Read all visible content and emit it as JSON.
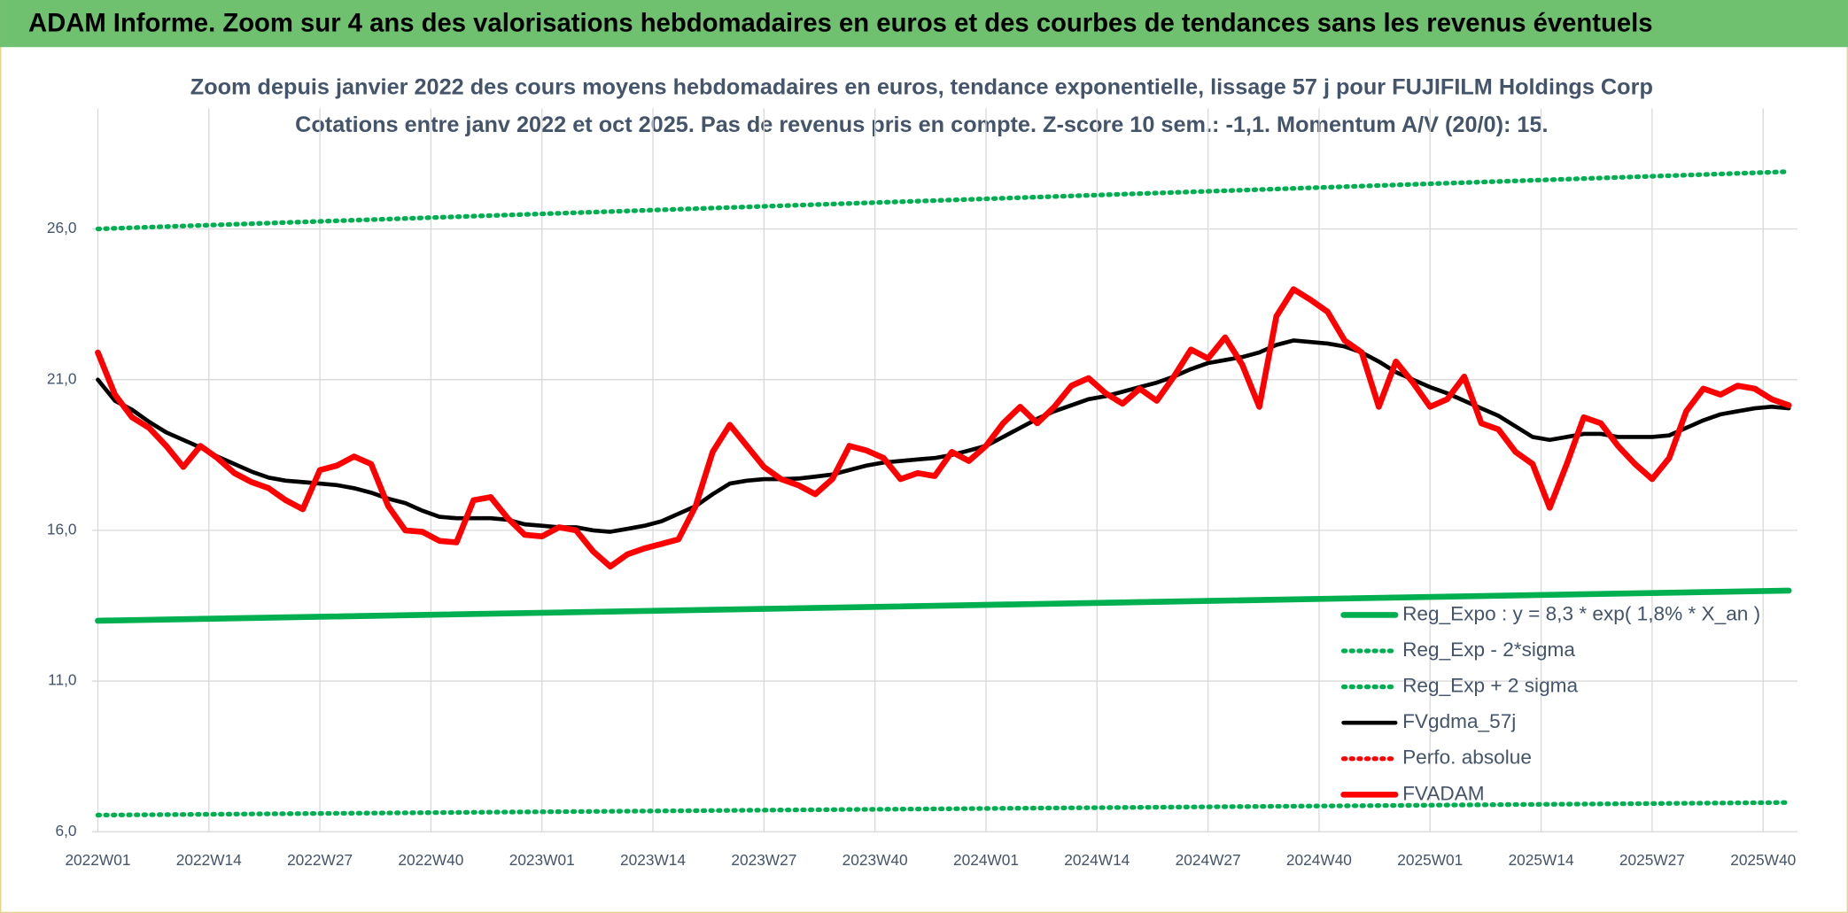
{
  "chart_data": {
    "type": "line",
    "header": "ADAM Informe. Zoom sur 4 ans des valorisations hebdomadaires en euros et des courbes de tendances sans les revenus éventuels",
    "title": "Zoom depuis janvier 2022 des cours moyens hebdomadaires en euros, tendance exponentielle, lissage 57 j pour FUJIFILM Holdings Corp",
    "subtitle": "Cotations entre janv 2022 et oct 2025. Pas de revenus pris en compte. Z-score 10 sem.: -1,1. Momentum A/V (20/0): 15.",
    "xlim": [
      0,
      199
    ],
    "xticks": [
      {
        "value": 0,
        "label": "2022W01"
      },
      {
        "value": 13,
        "label": "2022W14"
      },
      {
        "value": 26,
        "label": "2022W27"
      },
      {
        "value": 39,
        "label": "2022W40"
      },
      {
        "value": 52,
        "label": "2023W01"
      },
      {
        "value": 65,
        "label": "2023W14"
      },
      {
        "value": 78,
        "label": "2023W27"
      },
      {
        "value": 91,
        "label": "2023W40"
      },
      {
        "value": 104,
        "label": "2024W01"
      },
      {
        "value": 117,
        "label": "2024W14"
      },
      {
        "value": 130,
        "label": "2024W27"
      },
      {
        "value": 143,
        "label": "2024W40"
      },
      {
        "value": 156,
        "label": "2025W01"
      },
      {
        "value": 169,
        "label": "2025W14"
      },
      {
        "value": 182,
        "label": "2025W27"
      },
      {
        "value": 195,
        "label": "2025W40"
      }
    ],
    "ylim": [
      6,
      30
    ],
    "yticks": [
      {
        "value": 6,
        "label": "6,0"
      },
      {
        "value": 11,
        "label": "11,0"
      },
      {
        "value": 16,
        "label": "16,0"
      },
      {
        "value": 21,
        "label": "21,0"
      },
      {
        "value": 26,
        "label": "26,0"
      }
    ],
    "grid": true,
    "legend": "lower right",
    "x": [
      0,
      2,
      4,
      6,
      8,
      10,
      12,
      14,
      16,
      18,
      20,
      22,
      24,
      26,
      28,
      30,
      32,
      34,
      36,
      38,
      40,
      42,
      44,
      46,
      48,
      50,
      52,
      54,
      56,
      58,
      60,
      62,
      64,
      66,
      68,
      70,
      72,
      74,
      76,
      78,
      80,
      82,
      84,
      86,
      88,
      90,
      92,
      94,
      96,
      98,
      100,
      102,
      104,
      106,
      108,
      110,
      112,
      114,
      116,
      118,
      120,
      122,
      124,
      126,
      128,
      130,
      132,
      134,
      136,
      138,
      140,
      142,
      144,
      146,
      148,
      150,
      152,
      154,
      156,
      158,
      160,
      162,
      164,
      166,
      168,
      170,
      172,
      174,
      176,
      178,
      180,
      182,
      184,
      186,
      188,
      190,
      192,
      194,
      196,
      198
    ],
    "series": [
      {
        "name": "Reg_Expo : y = 8,3 * exp( 1,8% *  X_an )",
        "color": "#00b050",
        "style": "solid",
        "x": [
          0,
          198
        ],
        "values": [
          13.0,
          14.0
        ]
      },
      {
        "name": "Reg_Exp - 2*sigma",
        "color": "#00b050",
        "style": "dotted",
        "x": [
          0,
          198
        ],
        "values": [
          6.55,
          6.97
        ]
      },
      {
        "name": "Reg_Exp + 2 sigma",
        "color": "#00b050",
        "style": "dotted",
        "x": [
          0,
          198
        ],
        "values": [
          26.0,
          27.9
        ]
      },
      {
        "name": "FVgdma_57j",
        "color": "#000000",
        "style": "solid",
        "values": [
          21.0,
          20.3,
          20.0,
          19.6,
          19.25,
          19.0,
          18.75,
          18.45,
          18.2,
          17.95,
          17.75,
          17.65,
          17.6,
          17.55,
          17.5,
          17.4,
          17.25,
          17.05,
          16.9,
          16.65,
          16.45,
          16.4,
          16.4,
          16.4,
          16.35,
          16.2,
          16.15,
          16.1,
          16.1,
          16.0,
          15.95,
          16.05,
          16.15,
          16.3,
          16.55,
          16.8,
          17.2,
          17.55,
          17.65,
          17.7,
          17.7,
          17.72,
          17.78,
          17.85,
          18.0,
          18.15,
          18.25,
          18.3,
          18.35,
          18.4,
          18.5,
          18.65,
          18.8,
          19.1,
          19.4,
          19.7,
          19.95,
          20.15,
          20.35,
          20.45,
          20.6,
          20.75,
          20.9,
          21.1,
          21.35,
          21.55,
          21.65,
          21.75,
          21.9,
          22.15,
          22.3,
          22.25,
          22.2,
          22.1,
          21.9,
          21.6,
          21.25,
          21.0,
          20.75,
          20.55,
          20.3,
          20.05,
          19.8,
          19.45,
          19.1,
          19.0,
          19.1,
          19.2,
          19.2,
          19.1,
          19.1,
          19.1,
          19.15,
          19.4,
          19.65,
          19.85,
          19.95,
          20.05,
          20.1,
          20.05
        ]
      },
      {
        "name": "Perfo. absolue",
        "color": "#ff0000",
        "style": "dotted",
        "x": [],
        "values": []
      },
      {
        "name": "FVADAM",
        "color": "#ff0000",
        "style": "solid",
        "values": [
          21.9,
          20.5,
          19.75,
          19.4,
          18.8,
          18.1,
          18.8,
          18.4,
          17.9,
          17.6,
          17.4,
          17.0,
          16.7,
          18.0,
          18.15,
          18.45,
          18.2,
          16.8,
          16.0,
          15.95,
          15.65,
          15.6,
          17.0,
          17.1,
          16.4,
          15.85,
          15.8,
          16.1,
          16.0,
          15.3,
          14.8,
          15.2,
          15.4,
          15.55,
          15.7,
          16.8,
          18.6,
          19.5,
          18.8,
          18.1,
          17.7,
          17.5,
          17.2,
          17.7,
          18.8,
          18.65,
          18.4,
          17.7,
          17.9,
          17.8,
          18.6,
          18.3,
          18.8,
          19.55,
          20.1,
          19.55,
          20.1,
          20.8,
          21.05,
          20.55,
          20.2,
          20.7,
          20.3,
          21.1,
          22.0,
          21.7,
          22.4,
          21.5,
          20.1,
          23.1,
          24.0,
          23.65,
          23.25,
          22.3,
          21.9,
          20.1,
          21.6,
          20.9,
          20.1,
          20.35,
          21.1,
          19.55,
          19.35,
          18.6,
          18.2,
          16.75,
          18.2,
          19.75,
          19.55,
          18.8,
          18.2,
          17.7,
          18.4,
          19.95,
          20.7,
          20.5,
          20.8,
          20.7,
          20.35,
          20.15
        ]
      }
    ]
  }
}
